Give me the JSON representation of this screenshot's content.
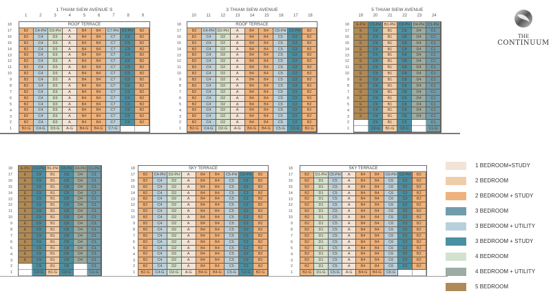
{
  "logo": {
    "line1": "THE",
    "line2": "CONTINUUM"
  },
  "legend": [
    {
      "label": "1 BEDROOM+STUDY",
      "color": "#f1e3d8"
    },
    {
      "label": "2 BEDROOM",
      "color": "#f0cdaa"
    },
    {
      "label": "2 BEDROOM + STUDY",
      "color": "#eeb27c"
    },
    {
      "label": "3 BEDROOM",
      "color": "#6f9cac"
    },
    {
      "label": "3 BEDROOM + UTILITY",
      "color": "#b9d0dc"
    },
    {
      "label": "3 BEDROOM + STUDY",
      "color": "#4b8fa3"
    },
    {
      "label": "4 BEDROOM",
      "color": "#d3e2cf"
    },
    {
      "label": "4 BEDROOM + UTILITY",
      "color": "#9aaca3"
    },
    {
      "label": "5 BEDROOM",
      "color": "#b08a56"
    }
  ],
  "blocks": [
    {
      "title": "1 THIAM SIEW AVENUE S",
      "terrace": "ROOF TERRACE",
      "top_floor": 18,
      "columns": [
        {
          "num": "1",
          "type": 2,
          "top": "B2",
          "typical": "B2",
          "floor2": "B2",
          "floor1": "B2-G"
        },
        {
          "num": "2",
          "type": 4,
          "top": "C4-PH",
          "typical": "C4",
          "floor2": "C4",
          "floor1": "C4-G"
        },
        {
          "num": "3",
          "type": 6,
          "top": "D3-PH",
          "typical": "D3",
          "floor2": "D3",
          "floor1": "D3-G"
        },
        {
          "num": "4",
          "type": 0,
          "top": "A",
          "typical": "A",
          "floor2": "A",
          "floor1": "A-G"
        },
        {
          "num": "5",
          "type": 2,
          "top": "B4",
          "typical": "B4",
          "floor2": "B4",
          "floor1": "B4-G"
        },
        {
          "num": "6",
          "type": 2,
          "top": "B4",
          "typical": "B4",
          "floor2": "B4",
          "floor1": "B4-G"
        },
        {
          "num": "7",
          "type": 4,
          "top": "C7-PH",
          "typical": "C7",
          "floor2": "C7",
          "floor1": "C7-G"
        },
        {
          "num": "8",
          "type": 5,
          "top": "C3-PH",
          "typical": "C3",
          "floor2": "C3",
          "floor1": null
        },
        {
          "num": "9",
          "type": 2,
          "top": "B2",
          "typical": "B2",
          "floor2": "B2",
          "floor1": null
        }
      ]
    },
    {
      "title": "3 THIAM SIEW AVENUE",
      "terrace": "ROOF TERRACE",
      "top_floor": 18,
      "columns": [
        {
          "num": "10",
          "type": 2,
          "top": "B2",
          "typical": "B2",
          "floor2": "B2",
          "floor1": "B2-G"
        },
        {
          "num": "11",
          "type": 4,
          "top": "C4-PH",
          "typical": "C4",
          "floor2": "C4",
          "floor1": "C4-G"
        },
        {
          "num": "12",
          "type": 6,
          "top": "D2-PH",
          "typical": "D2",
          "floor2": "D2",
          "floor1": "D2-G"
        },
        {
          "num": "13",
          "type": 0,
          "top": "A",
          "typical": "A",
          "floor2": "A",
          "floor1": "A-G"
        },
        {
          "num": "14",
          "type": 2,
          "top": "B4",
          "typical": "B4",
          "floor2": "B4",
          "floor1": "B4-G"
        },
        {
          "num": "15",
          "type": 2,
          "top": "B4",
          "typical": "B4",
          "floor2": "B4",
          "floor1": "B4-G"
        },
        {
          "num": "16",
          "type": 4,
          "top": "C5-PH",
          "typical": "C5",
          "floor2": "C5",
          "floor1": "C5-G"
        },
        {
          "num": "17",
          "type": 5,
          "top": "C2-PH",
          "typical": "C2",
          "floor2": "C2",
          "floor1": "C2-G"
        },
        {
          "num": "18",
          "type": 2,
          "top": "B2",
          "typical": "B2",
          "floor2": "B2",
          "floor1": "B2-G"
        }
      ]
    },
    {
      "title": "5 THIAM SIEW AVENUE",
      "terrace": null,
      "top_floor": 18,
      "columns": [
        {
          "num": "19",
          "type": 8,
          "top": "E-PH",
          "typical": "E",
          "floor2": null,
          "floor1": null
        },
        {
          "num": "20",
          "type": 5,
          "top": "C9-PH",
          "typical": "C9",
          "floor2": "C9",
          "floor1": "C9-G"
        },
        {
          "num": "21",
          "type": 1,
          "top": "B1-PH",
          "typical": "B1",
          "floor2": "B1",
          "floor1": "B1-G"
        },
        {
          "num": "22",
          "type": 5,
          "top": "C8-PH",
          "typical": "C8",
          "floor2": "C8",
          "floor1": "C8-G"
        },
        {
          "num": "23",
          "type": 7,
          "top": "D4-PH",
          "typical": "D4",
          "floor2": null,
          "floor1": null
        },
        {
          "num": "24",
          "type": 3,
          "top": "C1-PH",
          "typical": "C1",
          "floor2": "C1",
          "floor1": "C1-G"
        }
      ]
    },
    {
      "title": "",
      "terrace": null,
      "top_floor": 18,
      "columns": [
        {
          "num": "",
          "type": 8,
          "top": "E-PH",
          "typical": "E",
          "floor2": null,
          "floor1": null
        },
        {
          "num": "",
          "type": 5,
          "top": "C9-PH",
          "typical": "C9",
          "floor2": "C9",
          "floor1": "C9-G"
        },
        {
          "num": "",
          "type": 1,
          "top": "B1-PH",
          "typical": "B1",
          "floor2": "B1",
          "floor1": "B1-G"
        },
        {
          "num": "",
          "type": 5,
          "top": "C8-PH",
          "typical": "C8",
          "floor2": "C8",
          "floor1": "C8-G"
        },
        {
          "num": "",
          "type": 7,
          "top": "D4-PH",
          "typical": "D4",
          "floor2": null,
          "floor1": null
        },
        {
          "num": "",
          "type": 3,
          "top": "C1-PH",
          "typical": "C1",
          "floor2": "C1",
          "floor1": "C1-G"
        }
      ]
    },
    {
      "title": "",
      "terrace": "SKY TERRACE",
      "top_floor": 18,
      "columns": [
        {
          "num": "",
          "type": 2,
          "top": "B2",
          "typical": "B2",
          "floor2": "B2",
          "floor1": "B2-G"
        },
        {
          "num": "",
          "type": 4,
          "top": "C4-PH",
          "typical": "C4",
          "floor2": "C4",
          "floor1": "C4-G"
        },
        {
          "num": "",
          "type": 6,
          "top": "D2-PH",
          "typical": "D2",
          "floor2": "D2",
          "floor1": "D2-G"
        },
        {
          "num": "",
          "type": 0,
          "top": "A",
          "typical": "A",
          "floor2": "A",
          "floor1": "A-G"
        },
        {
          "num": "",
          "type": 2,
          "top": "B4",
          "typical": "B4",
          "floor2": "B4",
          "floor1": "B4-G"
        },
        {
          "num": "",
          "type": 2,
          "top": "B4",
          "typical": "B4",
          "floor2": "B4",
          "floor1": "B4-G"
        },
        {
          "num": "",
          "type": 4,
          "top": "C5-PH",
          "typical": "C5",
          "floor2": "C5",
          "floor1": "C5-G"
        },
        {
          "num": "",
          "type": 5,
          "top": "C2-PH",
          "typical": "C2",
          "floor2": "C2",
          "floor1": "C2-G"
        },
        {
          "num": "",
          "type": 2,
          "top": "B2",
          "typical": "B2",
          "floor2": "B2",
          "floor1": "B2-G"
        }
      ]
    },
    {
      "title": "",
      "terrace": "SKY TERRACE",
      "top_floor": 18,
      "columns": [
        {
          "num": "",
          "type": 2,
          "top": "B2",
          "typical": "B2",
          "floor2": "B2",
          "floor1": "B2-G"
        },
        {
          "num": "",
          "type": 6,
          "top": "D1-PH",
          "typical": "D1",
          "floor2": "D1",
          "floor1": "D1-G"
        },
        {
          "num": "",
          "type": 4,
          "top": "C5-PH",
          "typical": "C5",
          "floor2": "C5",
          "floor1": "C5-G"
        },
        {
          "num": "",
          "type": 0,
          "top": "A",
          "typical": "A",
          "floor2": "A",
          "floor1": "A-G"
        },
        {
          "num": "",
          "type": 2,
          "top": "B4",
          "typical": "B4",
          "floor2": "B4",
          "floor1": "B4-G"
        },
        {
          "num": "",
          "type": 2,
          "top": "B4",
          "typical": "B4",
          "floor2": "B4",
          "floor1": "B4-G"
        },
        {
          "num": "",
          "type": 4,
          "top": "C6-PH",
          "typical": "C6",
          "floor2": "C6",
          "floor1": "C6-G"
        },
        {
          "num": "",
          "type": 5,
          "top": "C2-PH",
          "typical": "C2",
          "floor2": "C2",
          "floor1": null
        },
        {
          "num": "",
          "type": 2,
          "top": "B2",
          "typical": "B2",
          "floor2": "B2",
          "floor1": null
        }
      ]
    }
  ]
}
